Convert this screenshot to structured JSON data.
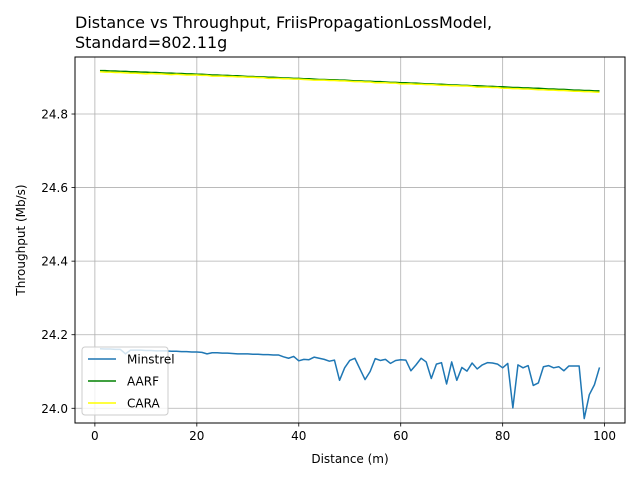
{
  "chart_data": {
    "type": "line",
    "title": "Distance vs Throughput, FriisPropagationLossModel,\nStandard=802.11g",
    "xlabel": "Distance (m)",
    "ylabel": "Throughput (Mb/s)",
    "xlim": [
      -3.9,
      104.0
    ],
    "ylim": [
      23.96,
      24.955
    ],
    "xticks": [
      0,
      20,
      40,
      60,
      80,
      100
    ],
    "yticks": [
      24.0,
      24.2,
      24.4,
      24.6,
      24.8
    ],
    "ytick_labels": [
      "24.0",
      "24.2",
      "24.4",
      "24.6",
      "24.8"
    ],
    "grid": true,
    "legend_position": "lower-left",
    "x": [
      1,
      2,
      3,
      4,
      5,
      6,
      7,
      8,
      9,
      10,
      11,
      12,
      13,
      14,
      15,
      16,
      17,
      18,
      19,
      20,
      21,
      22,
      23,
      24,
      25,
      26,
      27,
      28,
      29,
      30,
      31,
      32,
      33,
      34,
      35,
      36,
      37,
      38,
      39,
      40,
      41,
      42,
      43,
      44,
      45,
      46,
      47,
      48,
      49,
      50,
      51,
      52,
      53,
      54,
      55,
      56,
      57,
      58,
      59,
      60,
      61,
      62,
      63,
      64,
      65,
      66,
      67,
      68,
      69,
      70,
      71,
      72,
      73,
      74,
      75,
      76,
      77,
      78,
      79,
      80,
      81,
      82,
      83,
      84,
      85,
      86,
      87,
      88,
      89,
      90,
      91,
      92,
      93,
      94,
      95,
      96,
      97,
      98,
      99
    ],
    "series": [
      {
        "name": "Minstrel",
        "color": "#1f77b4",
        "values": [
          24.162,
          24.161,
          24.161,
          24.16,
          24.16,
          24.148,
          24.158,
          24.158,
          24.158,
          24.157,
          24.157,
          24.156,
          24.156,
          24.156,
          24.155,
          24.155,
          24.154,
          24.154,
          24.153,
          24.153,
          24.152,
          24.148,
          24.151,
          24.151,
          24.15,
          24.15,
          24.149,
          24.148,
          24.148,
          24.148,
          24.147,
          24.147,
          24.146,
          24.146,
          24.145,
          24.145,
          24.14,
          24.136,
          24.141,
          24.129,
          24.133,
          24.132,
          24.139,
          24.136,
          24.133,
          24.128,
          24.131,
          24.076,
          24.11,
          24.13,
          24.136,
          24.107,
          24.078,
          24.1,
          24.135,
          24.13,
          24.133,
          24.122,
          24.13,
          24.132,
          24.131,
          24.102,
          24.118,
          24.136,
          24.126,
          24.081,
          24.12,
          24.124,
          24.066,
          24.126,
          24.076,
          24.111,
          24.101,
          24.123,
          24.107,
          24.118,
          24.124,
          24.123,
          24.12,
          24.11,
          24.122,
          24.001,
          24.118,
          24.11,
          24.116,
          24.062,
          24.069,
          24.113,
          24.116,
          24.11,
          24.113,
          24.102,
          24.115,
          24.115,
          24.115,
          23.972,
          24.037,
          24.064,
          24.111
        ]
      },
      {
        "name": "AARF",
        "color": "#008000",
        "values": [
          24.918,
          24.918,
          24.917,
          24.917,
          24.916,
          24.916,
          24.915,
          24.915,
          24.914,
          24.914,
          24.913,
          24.913,
          24.912,
          24.911,
          24.911,
          24.91,
          24.91,
          24.909,
          24.909,
          24.908,
          24.908,
          24.907,
          24.906,
          24.906,
          24.905,
          24.905,
          24.904,
          24.904,
          24.903,
          24.902,
          24.902,
          24.901,
          24.901,
          24.9,
          24.9,
          24.899,
          24.898,
          24.898,
          24.897,
          24.897,
          24.896,
          24.896,
          24.895,
          24.894,
          24.894,
          24.893,
          24.893,
          24.892,
          24.892,
          24.891,
          24.89,
          24.89,
          24.889,
          24.889,
          24.888,
          24.888,
          24.887,
          24.886,
          24.886,
          24.885,
          24.885,
          24.884,
          24.884,
          24.883,
          24.882,
          24.882,
          24.881,
          24.881,
          24.88,
          24.879,
          24.879,
          24.878,
          24.878,
          24.877,
          24.877,
          24.876,
          24.875,
          24.875,
          24.874,
          24.874,
          24.873,
          24.872,
          24.872,
          24.871,
          24.871,
          24.87,
          24.87,
          24.869,
          24.868,
          24.868,
          24.867,
          24.867,
          24.866,
          24.865,
          24.865,
          24.864,
          24.864,
          24.863,
          24.863
        ]
      },
      {
        "name": "CARA",
        "color": "#ffff00",
        "values": [
          24.915,
          24.914,
          24.914,
          24.913,
          24.913,
          24.912,
          24.911,
          24.911,
          24.91,
          24.909,
          24.91,
          24.909,
          24.909,
          24.908,
          24.907,
          24.908,
          24.907,
          24.906,
          24.906,
          24.906,
          24.905,
          24.905,
          24.903,
          24.903,
          24.903,
          24.902,
          24.902,
          24.901,
          24.901,
          24.9,
          24.9,
          24.899,
          24.899,
          24.897,
          24.897,
          24.897,
          24.896,
          24.896,
          24.895,
          24.895,
          24.894,
          24.893,
          24.892,
          24.892,
          24.892,
          24.891,
          24.891,
          24.89,
          24.89,
          24.889,
          24.888,
          24.888,
          24.887,
          24.887,
          24.885,
          24.885,
          24.885,
          24.884,
          24.884,
          24.882,
          24.882,
          24.882,
          24.881,
          24.881,
          24.88,
          24.88,
          24.879,
          24.878,
          24.878,
          24.877,
          24.877,
          24.876,
          24.876,
          24.875,
          24.873,
          24.873,
          24.873,
          24.872,
          24.872,
          24.87,
          24.87,
          24.869,
          24.869,
          24.868,
          24.868,
          24.867,
          24.866,
          24.866,
          24.865,
          24.865,
          24.864,
          24.864,
          24.863,
          24.862,
          24.862,
          24.861,
          24.861,
          24.86,
          24.859
        ]
      }
    ]
  }
}
